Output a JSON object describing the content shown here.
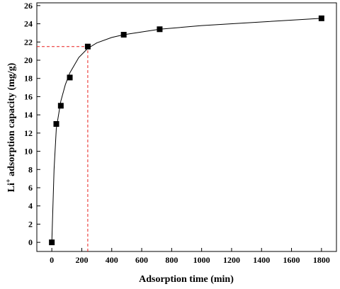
{
  "chart_data": {
    "type": "scatter",
    "xlabel": "Adsorption time (min)",
    "ylabel": {
      "base": "Li",
      "sup": "+",
      "rest": " adsorption capacity (mg/g)"
    },
    "x": [
      0,
      30,
      60,
      120,
      240,
      480,
      720,
      1800
    ],
    "values": [
      0,
      13,
      15,
      18.1,
      21.5,
      22.8,
      23.4,
      24.6
    ],
    "color": "#000000",
    "fit": {
      "x": [
        0,
        15,
        30,
        60,
        90,
        120,
        180,
        240,
        300,
        400,
        480,
        600,
        720,
        1000,
        1400,
        1800
      ],
      "values": [
        0,
        8,
        12.5,
        15.5,
        17.3,
        18.6,
        20.3,
        21.3,
        21.9,
        22.5,
        22.8,
        23.1,
        23.4,
        23.8,
        24.2,
        24.6
      ],
      "color": "#000000"
    },
    "reference": {
      "x": 240,
      "y": 21.5,
      "color": "#e8211f"
    },
    "xlim": [
      -100,
      1900
    ],
    "ylim": [
      -1,
      26.3
    ],
    "xticks": [
      0,
      200,
      400,
      600,
      800,
      1000,
      1200,
      1400,
      1600,
      1800
    ],
    "yticks": [
      0,
      2,
      4,
      6,
      8,
      10,
      12,
      14,
      16,
      18,
      20,
      22,
      24,
      26
    ]
  }
}
